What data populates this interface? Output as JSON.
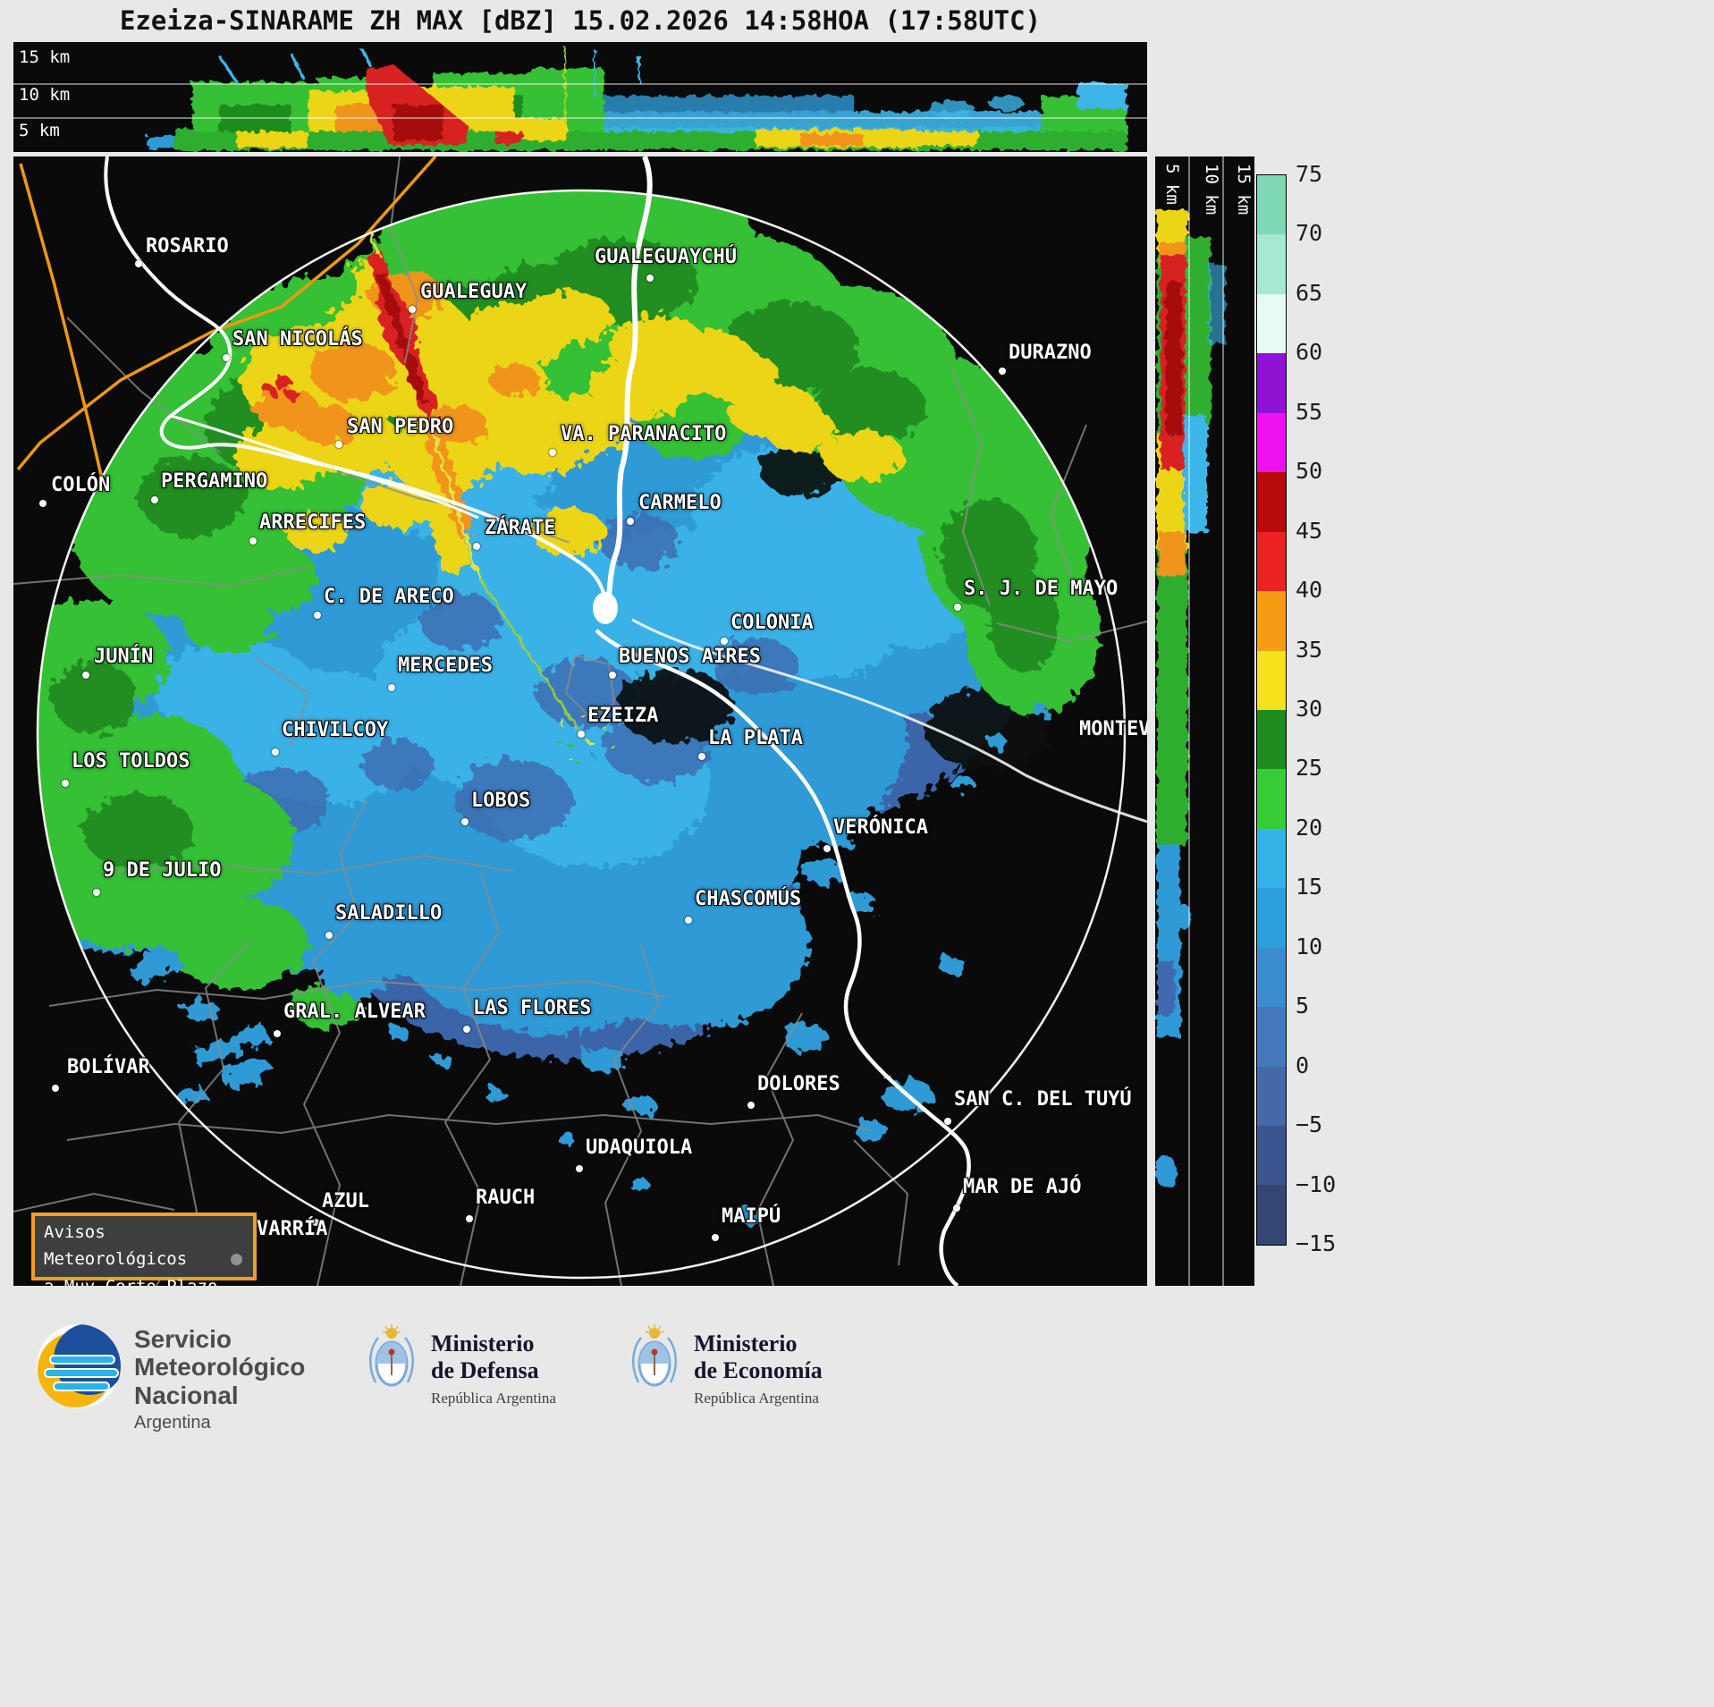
{
  "title": "Ezeiza-SINARAME ZH MAX [dBZ] 15.02.2026 14:58HOA (17:58UTC)",
  "top_panel": {
    "height_labels": [
      "15 km",
      "10 km",
      "5 km"
    ]
  },
  "right_panel": {
    "height_labels": [
      "5 km",
      "10 km",
      "15 km"
    ]
  },
  "colorbar": {
    "tick_labels": [
      "75",
      "70",
      "65",
      "60",
      "55",
      "50",
      "45",
      "40",
      "35",
      "30",
      "25",
      "20",
      "15",
      "10",
      "5",
      "0",
      "−5",
      "−10",
      "−15"
    ],
    "segment_colors": [
      "#7fd9b5",
      "#a6e9d0",
      "#e6fbf2",
      "#9012d2",
      "#ef12ef",
      "#b80b0b",
      "#ee2222",
      "#f59c14",
      "#f5e21a",
      "#1f8c1f",
      "#38cb38",
      "#35b3e8",
      "#2da0dc",
      "#3a8ccf",
      "#4578bd",
      "#4468a8",
      "#3c548e",
      "#344672"
    ]
  },
  "map": {
    "warning_box": {
      "line1": "Avisos Meteorológicos",
      "line2": "a Muy Corto Plazo"
    },
    "cities": [
      {
        "name": "ROSARIO",
        "label": [
          148,
          88
        ],
        "dot": [
          140,
          120
        ]
      },
      {
        "name": "GUALEGUAYCHÚ",
        "label": [
          650,
          100
        ],
        "dot": [
          712,
          136
        ]
      },
      {
        "name": "GUALEGUAY",
        "label": [
          455,
          139
        ],
        "dot": [
          446,
          171
        ]
      },
      {
        "name": "SAN NICOLÁS",
        "label": [
          245,
          192
        ],
        "dot": [
          238,
          225
        ]
      },
      {
        "name": "DURAZNO",
        "label": [
          1113,
          207
        ],
        "dot": [
          1106,
          240
        ]
      },
      {
        "name": "SAN PEDRO",
        "label": [
          373,
          290
        ],
        "dot": [
          364,
          322
        ]
      },
      {
        "name": "VA. PARANACITO",
        "label": [
          612,
          298
        ],
        "dot": [
          603,
          331
        ]
      },
      {
        "name": "COLÓN",
        "label": [
          42,
          355
        ],
        "dot": [
          33,
          388
        ]
      },
      {
        "name": "PERGAMINO",
        "label": [
          165,
          351
        ],
        "dot": [
          158,
          384
        ]
      },
      {
        "name": "CARMELO",
        "label": [
          699,
          375
        ],
        "dot": [
          690,
          408
        ]
      },
      {
        "name": "ARRECIFES",
        "label": [
          275,
          397
        ],
        "dot": [
          268,
          430
        ]
      },
      {
        "name": "ZÁRATE",
        "label": [
          527,
          403
        ],
        "dot": [
          518,
          436
        ]
      },
      {
        "name": "C. DE ARECO",
        "label": [
          347,
          480
        ],
        "dot": [
          340,
          513
        ]
      },
      {
        "name": "S. J. DE MAYO",
        "label": [
          1063,
          471
        ],
        "dot": [
          1056,
          504
        ]
      },
      {
        "name": "COLONIA",
        "label": [
          802,
          509
        ],
        "dot": [
          795,
          542
        ]
      },
      {
        "name": "JUNÍN",
        "label": [
          90,
          547
        ],
        "dot": [
          81,
          580
        ]
      },
      {
        "name": "MERCEDES",
        "label": [
          430,
          557
        ],
        "dot": [
          423,
          594
        ]
      },
      {
        "name": "BUENOS AIRES",
        "label": [
          677,
          547
        ],
        "dot": [
          670,
          580
        ]
      },
      {
        "name": "EZEIZA",
        "label": [
          642,
          613
        ],
        "dot": [
          635,
          646
        ]
      },
      {
        "name": "CHIVILCOY",
        "label": [
          300,
          629
        ],
        "dot": [
          293,
          666
        ]
      },
      {
        "name": "LA PLATA",
        "label": [
          777,
          638
        ],
        "dot": [
          770,
          671
        ]
      },
      {
        "name": "MONTEV",
        "label": [
          1192,
          628
        ],
        "dot": null
      },
      {
        "name": "LOS TOLDOS",
        "label": [
          65,
          664
        ],
        "dot": [
          58,
          701
        ]
      },
      {
        "name": "LOBOS",
        "label": [
          512,
          708
        ],
        "dot": [
          505,
          744
        ]
      },
      {
        "name": "VERÓNICA",
        "label": [
          917,
          738
        ],
        "dot": [
          910,
          774
        ]
      },
      {
        "name": "9 DE JULIO",
        "label": [
          100,
          786
        ],
        "dot": [
          93,
          823
        ]
      },
      {
        "name": "CHASCOMÚS",
        "label": [
          762,
          818
        ],
        "dot": [
          755,
          854
        ]
      },
      {
        "name": "SALADILLO",
        "label": [
          360,
          834
        ],
        "dot": [
          353,
          871
        ]
      },
      {
        "name": "GRAL. ALVEAR",
        "label": [
          302,
          944
        ],
        "dot": [
          295,
          981
        ]
      },
      {
        "name": "LAS FLORES",
        "label": [
          514,
          940
        ],
        "dot": [
          507,
          976
        ]
      },
      {
        "name": "BOLÍVAR",
        "label": [
          60,
          1006
        ],
        "dot": [
          47,
          1042
        ]
      },
      {
        "name": "DOLORES",
        "label": [
          832,
          1025
        ],
        "dot": [
          825,
          1061
        ]
      },
      {
        "name": "SAN C. DEL TUYÚ",
        "label": [
          1052,
          1042
        ],
        "dot": [
          1045,
          1079
        ]
      },
      {
        "name": "UDAQUIOLA",
        "label": [
          640,
          1096
        ],
        "dot": [
          633,
          1132
        ]
      },
      {
        "name": "AZUL",
        "label": [
          345,
          1156
        ],
        "dot": [
          338,
          1192
        ]
      },
      {
        "name": "RAUCH",
        "label": [
          517,
          1152
        ],
        "dot": [
          510,
          1188
        ]
      },
      {
        "name": "MAR DE AJÓ",
        "label": [
          1062,
          1140
        ],
        "dot": [
          1055,
          1176
        ]
      },
      {
        "name": "MAIPÚ",
        "label": [
          792,
          1173
        ],
        "dot": [
          785,
          1209
        ]
      },
      {
        "name": "VARRÍA",
        "label": [
          272,
          1187
        ],
        "dot": null
      }
    ]
  },
  "footer": {
    "smn": {
      "line1": "Servicio",
      "line2": "Meteorológico",
      "line3": "Nacional",
      "country": "Argentina"
    },
    "defensa": {
      "line1": "Ministerio",
      "line2": "de Defensa",
      "subtitle": "República Argentina"
    },
    "economia": {
      "line1": "Ministerio",
      "line2": "de Economía",
      "subtitle": "República Argentina"
    }
  }
}
